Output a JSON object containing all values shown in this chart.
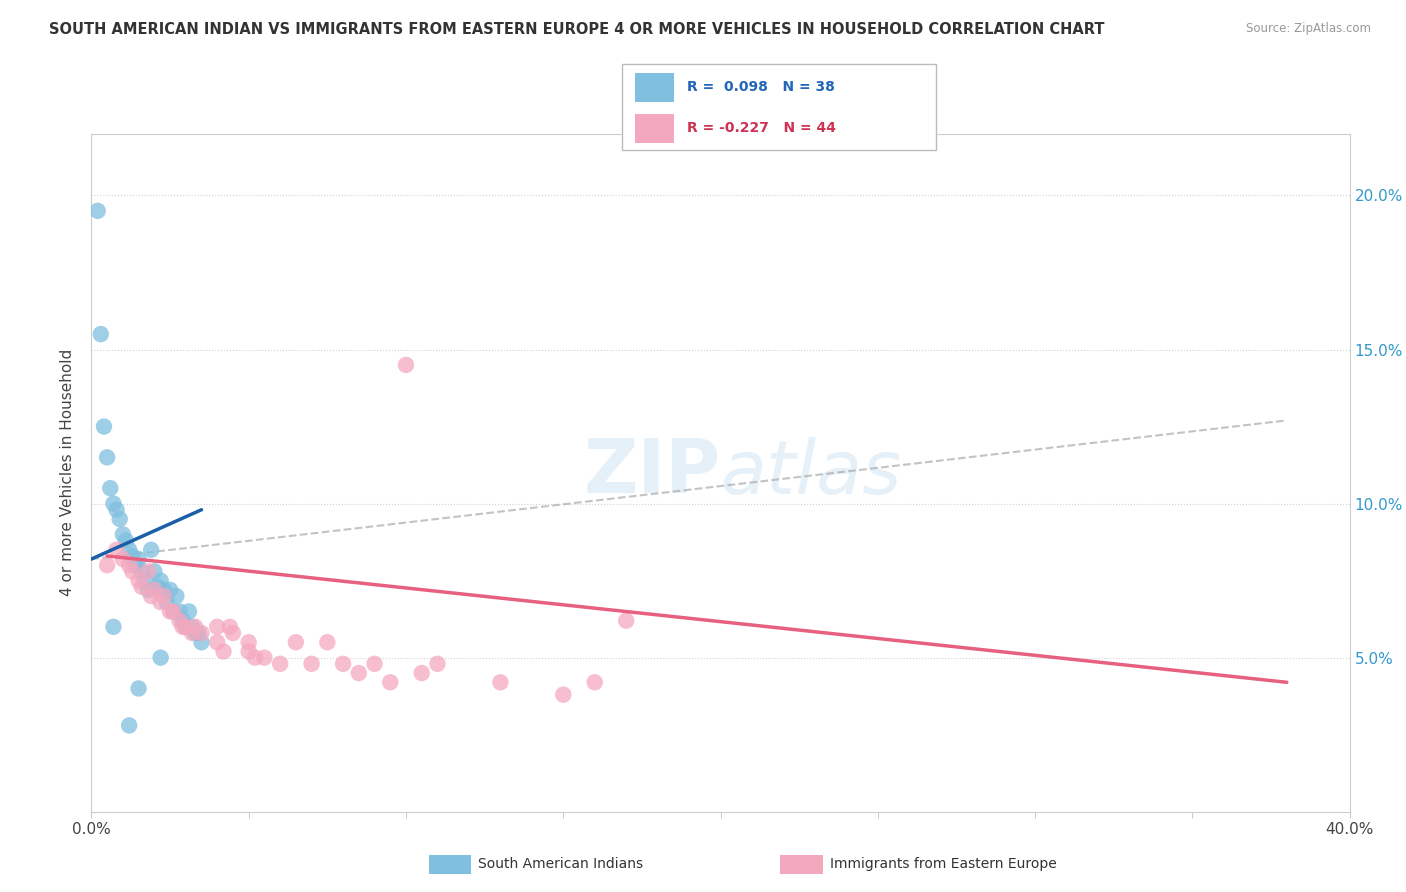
{
  "title": "SOUTH AMERICAN INDIAN VS IMMIGRANTS FROM EASTERN EUROPE 4 OR MORE VEHICLES IN HOUSEHOLD CORRELATION CHART",
  "source": "Source: ZipAtlas.com",
  "ylabel": "4 or more Vehicles in Household",
  "right_yticks": [
    "20.0%",
    "15.0%",
    "10.0%",
    "5.0%"
  ],
  "right_ytick_vals": [
    0.2,
    0.15,
    0.1,
    0.05
  ],
  "watermark": "ZIPatlas",
  "blue_color": "#7fbfdf",
  "pink_color": "#f4a8be",
  "blue_line_color": "#1a5fa8",
  "pink_line_color": "#e86080",
  "dashed_line_color": "#aaaaaa",
  "blue_scatter": [
    [
      0.002,
      0.195
    ],
    [
      0.003,
      0.155
    ],
    [
      0.004,
      0.125
    ],
    [
      0.005,
      0.115
    ],
    [
      0.006,
      0.105
    ],
    [
      0.007,
      0.1
    ],
    [
      0.008,
      0.098
    ],
    [
      0.009,
      0.095
    ],
    [
      0.01,
      0.09
    ],
    [
      0.011,
      0.088
    ],
    [
      0.012,
      0.085
    ],
    [
      0.013,
      0.083
    ],
    [
      0.014,
      0.08
    ],
    [
      0.015,
      0.082
    ],
    [
      0.016,
      0.078
    ],
    [
      0.017,
      0.075
    ],
    [
      0.018,
      0.072
    ],
    [
      0.019,
      0.085
    ],
    [
      0.02,
      0.078
    ],
    [
      0.021,
      0.073
    ],
    [
      0.022,
      0.075
    ],
    [
      0.023,
      0.072
    ],
    [
      0.024,
      0.068
    ],
    [
      0.025,
      0.072
    ],
    [
      0.026,
      0.065
    ],
    [
      0.027,
      0.07
    ],
    [
      0.028,
      0.065
    ],
    [
      0.029,
      0.062
    ],
    [
      0.03,
      0.06
    ],
    [
      0.031,
      0.065
    ],
    [
      0.032,
      0.06
    ],
    [
      0.033,
      0.058
    ],
    [
      0.034,
      0.058
    ],
    [
      0.035,
      0.055
    ],
    [
      0.007,
      0.06
    ],
    [
      0.012,
      0.028
    ],
    [
      0.015,
      0.04
    ],
    [
      0.022,
      0.05
    ]
  ],
  "pink_scatter": [
    [
      0.005,
      0.08
    ],
    [
      0.008,
      0.085
    ],
    [
      0.01,
      0.082
    ],
    [
      0.012,
      0.08
    ],
    [
      0.013,
      0.078
    ],
    [
      0.015,
      0.075
    ],
    [
      0.016,
      0.073
    ],
    [
      0.018,
      0.078
    ],
    [
      0.019,
      0.07
    ],
    [
      0.02,
      0.072
    ],
    [
      0.022,
      0.068
    ],
    [
      0.023,
      0.07
    ],
    [
      0.025,
      0.065
    ],
    [
      0.026,
      0.065
    ],
    [
      0.028,
      0.062
    ],
    [
      0.029,
      0.06
    ],
    [
      0.03,
      0.06
    ],
    [
      0.032,
      0.058
    ],
    [
      0.033,
      0.06
    ],
    [
      0.035,
      0.058
    ],
    [
      0.04,
      0.06
    ],
    [
      0.04,
      0.055
    ],
    [
      0.042,
      0.052
    ],
    [
      0.044,
      0.06
    ],
    [
      0.045,
      0.058
    ],
    [
      0.05,
      0.055
    ],
    [
      0.05,
      0.052
    ],
    [
      0.052,
      0.05
    ],
    [
      0.055,
      0.05
    ],
    [
      0.06,
      0.048
    ],
    [
      0.065,
      0.055
    ],
    [
      0.07,
      0.048
    ],
    [
      0.075,
      0.055
    ],
    [
      0.08,
      0.048
    ],
    [
      0.085,
      0.045
    ],
    [
      0.09,
      0.048
    ],
    [
      0.095,
      0.042
    ],
    [
      0.1,
      0.145
    ],
    [
      0.105,
      0.045
    ],
    [
      0.11,
      0.048
    ],
    [
      0.13,
      0.042
    ],
    [
      0.15,
      0.038
    ],
    [
      0.16,
      0.042
    ],
    [
      0.17,
      0.062
    ]
  ],
  "xlim": [
    0.0,
    0.4
  ],
  "ylim": [
    0.0,
    0.22
  ],
  "blue_trendline": [
    [
      0.0,
      0.082
    ],
    [
      0.035,
      0.098
    ]
  ],
  "pink_trendline": [
    [
      0.005,
      0.083
    ],
    [
      0.38,
      0.042
    ]
  ],
  "dashed_trendline": [
    [
      0.0,
      0.082
    ],
    [
      0.38,
      0.127
    ]
  ]
}
